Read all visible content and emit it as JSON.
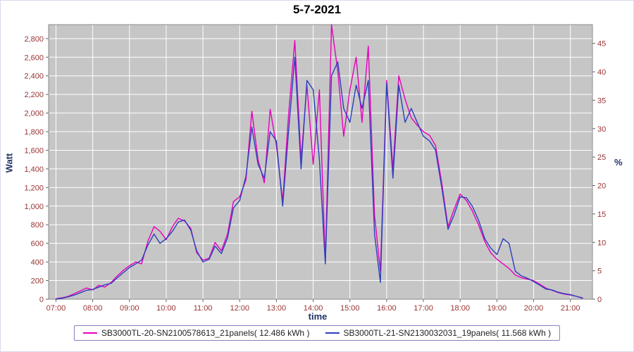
{
  "chart_data": {
    "type": "line",
    "title": "5-7-2021",
    "xlabel": "time",
    "ylabel_left": "Watt",
    "ylabel_right": "%",
    "plot_bg": "#c6c6c6",
    "grid_color": "#ffffff",
    "tick_label_color": "#993333",
    "x_range": [
      6.8,
      21.6
    ],
    "y_left_range": [
      0,
      2950
    ],
    "y_right_range": [
      0,
      48.3
    ],
    "x_ticks": [
      7,
      8,
      9,
      10,
      11,
      12,
      13,
      14,
      15,
      16,
      17,
      18,
      19,
      20,
      21
    ],
    "x_tick_labels": [
      "07:00",
      "08:00",
      "09:00",
      "10:00",
      "11:00",
      "12:00",
      "13:00",
      "14:00",
      "15:00",
      "16:00",
      "17:00",
      "18:00",
      "19:00",
      "20:00",
      "21:00"
    ],
    "y_left_ticks": [
      0,
      200,
      400,
      600,
      800,
      1000,
      1200,
      1400,
      1600,
      1800,
      2000,
      2200,
      2400,
      2600,
      2800
    ],
    "y_left_tick_labels": [
      "0",
      "200",
      "400",
      "600",
      "800",
      "1,000",
      "1,200",
      "1,400",
      "1,600",
      "1,800",
      "2,000",
      "2,200",
      "2,400",
      "2,600",
      "2,800"
    ],
    "y_right_ticks": [
      0,
      5,
      10,
      15,
      20,
      25,
      30,
      35,
      40,
      45
    ],
    "y_right_tick_labels": [
      "0",
      "5",
      "10",
      "15",
      "20",
      "25",
      "30",
      "35",
      "40",
      "45"
    ],
    "x": [
      7,
      7.17,
      7.33,
      7.5,
      7.67,
      7.83,
      8,
      8.17,
      8.33,
      8.5,
      8.67,
      8.83,
      9,
      9.17,
      9.33,
      9.5,
      9.67,
      9.83,
      10,
      10.17,
      10.33,
      10.5,
      10.67,
      10.83,
      11,
      11.17,
      11.33,
      11.5,
      11.67,
      11.83,
      12,
      12.17,
      12.33,
      12.5,
      12.67,
      12.83,
      13,
      13.17,
      13.33,
      13.5,
      13.67,
      13.83,
      14,
      14.17,
      14.33,
      14.5,
      14.67,
      14.83,
      15,
      15.17,
      15.33,
      15.5,
      15.67,
      15.83,
      16,
      16.17,
      16.33,
      16.5,
      16.67,
      16.83,
      17,
      17.17,
      17.33,
      17.5,
      17.67,
      17.83,
      18,
      18.17,
      18.33,
      18.5,
      18.67,
      18.83,
      19,
      19.17,
      19.33,
      19.5,
      19.67,
      19.83,
      20,
      20.17,
      20.33,
      20.5,
      20.67,
      20.83,
      21,
      21.17,
      21.33
    ],
    "series": [
      {
        "name": "SB3000TL-20-SN2100578613_21panels( 12.486 kWh )",
        "color": "#e600bb",
        "values": [
          5,
          15,
          30,
          60,
          90,
          120,
          100,
          150,
          130,
          180,
          250,
          310,
          360,
          400,
          380,
          620,
          780,
          730,
          640,
          780,
          870,
          840,
          760,
          500,
          420,
          440,
          610,
          520,
          700,
          1050,
          1100,
          1280,
          2020,
          1500,
          1250,
          2040,
          1650,
          1050,
          1980,
          2780,
          1500,
          2300,
          1450,
          2250,
          400,
          2950,
          2450,
          1750,
          2250,
          2600,
          1900,
          2720,
          900,
          300,
          2350,
          1400,
          2400,
          2150,
          1950,
          1870,
          1800,
          1760,
          1650,
          1250,
          780,
          960,
          1130,
          1060,
          950,
          800,
          620,
          500,
          430,
          380,
          330,
          260,
          230,
          215,
          200,
          160,
          120,
          95,
          70,
          55,
          45,
          30,
          15
        ]
      },
      {
        "name": "SB3000TL-21-SN2130032031_19panels( 11.568 kWh )",
        "color": "#2b3fbe",
        "values": [
          0,
          10,
          25,
          45,
          70,
          95,
          105,
          130,
          155,
          170,
          230,
          285,
          340,
          380,
          420,
          580,
          700,
          600,
          650,
          730,
          830,
          850,
          740,
          520,
          400,
          430,
          570,
          490,
          660,
          980,
          1060,
          1320,
          1850,
          1450,
          1300,
          1800,
          1700,
          1000,
          1800,
          2600,
          1400,
          2350,
          2250,
          1500,
          380,
          2400,
          2550,
          2050,
          1900,
          2300,
          2050,
          2350,
          700,
          180,
          2320,
          1300,
          2300,
          1900,
          2050,
          1900,
          1750,
          1700,
          1600,
          1200,
          750,
          900,
          1100,
          1090,
          1000,
          850,
          650,
          550,
          480,
          650,
          600,
          300,
          250,
          225,
          190,
          150,
          110,
          100,
          75,
          60,
          50,
          30,
          10
        ]
      }
    ],
    "legend_position": "bottom"
  }
}
